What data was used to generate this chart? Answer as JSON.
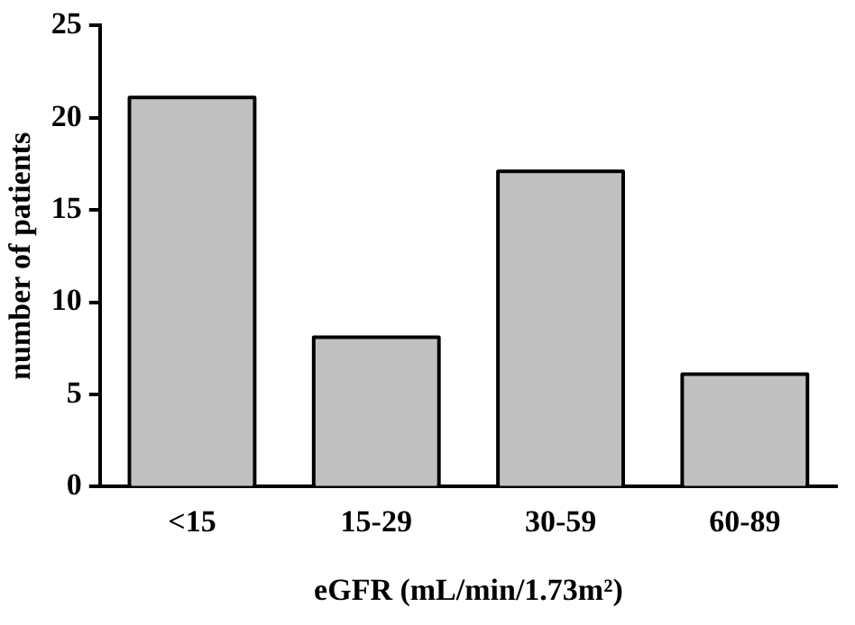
{
  "chart_data": {
    "type": "bar",
    "xlabel": "eGFR (mL/min/1.73m²)",
    "ylabel": "number of patients",
    "categories": [
      "<15",
      "15-29",
      "30-59",
      "60-89"
    ],
    "values": [
      21,
      8,
      17,
      6
    ],
    "color": "#c0c0c0",
    "ylim": [
      0,
      25
    ],
    "yticks": [
      0,
      5,
      10,
      15,
      20,
      25
    ],
    "grid": false,
    "legend": false
  }
}
